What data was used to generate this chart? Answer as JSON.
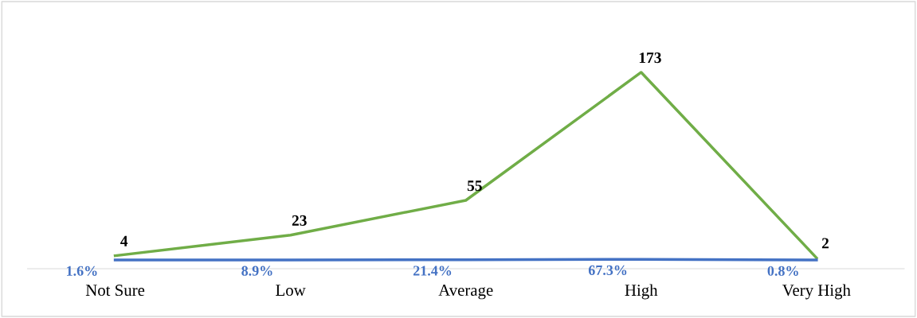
{
  "chart_data": {
    "type": "line",
    "categories": [
      "Not Sure",
      "Low",
      "Average",
      "High",
      "Very High"
    ],
    "series": [
      {
        "color": "#70ad47",
        "values": [
          4,
          23,
          55,
          173,
          2
        ],
        "value_labels": [
          "4",
          "23",
          "55",
          "173",
          "2"
        ]
      },
      {
        "color": "#4472c4",
        "values": [
          0.016,
          0.089,
          0.214,
          0.673,
          0.008
        ],
        "value_labels": [
          "1.6%",
          "8.9%",
          "21.4%",
          "67.3%",
          "0.8%"
        ]
      }
    ],
    "tick_labels": "x",
    "grid": false,
    "legend": false,
    "line_style": "solid"
  }
}
